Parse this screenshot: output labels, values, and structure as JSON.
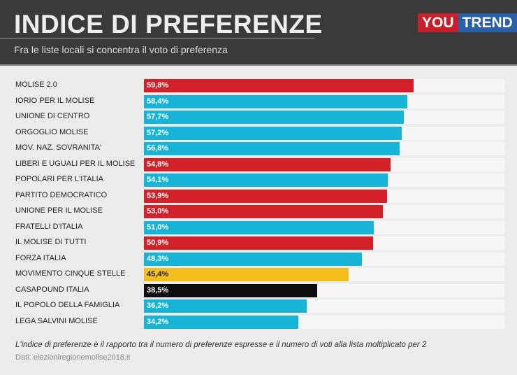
{
  "header": {
    "title": "INDICE DI PREFERENZE",
    "subtitle": "Fra le liste locali si concentra il voto di preferenza",
    "logo": "YouTrend"
  },
  "chart_data": {
    "type": "bar",
    "orientation": "horizontal",
    "title": "INDICE DI PREFERENZE",
    "xlim": [
      0,
      80
    ],
    "colors": {
      "red": "#d42129",
      "cyan": "#18b4d8",
      "yellow": "#f5be1c",
      "black": "#0d0d0d"
    },
    "categories": [
      "MOLISE 2.0",
      "IORIO PER IL MOLISE",
      "UNIONE DI CENTRO",
      "ORGOGLIO MOLISE",
      "MOV. NAZ. SOVRANITA'",
      "LIBERI E UGUALI PER IL MOLISE",
      "POPOLARI PER L'ITALIA",
      "PARTITO DEMOCRATICO",
      "UNIONE PER IL MOLISE",
      "FRATELLI D'ITALIA",
      "IL MOLISE DI TUTTI",
      "FORZA ITALIA",
      "MOVIMENTO CINQUE STELLE",
      "CASAPOUND ITALIA",
      "IL POPOLO DELLA FAMIGLIA",
      "LEGA SALVINI MOLISE"
    ],
    "values": [
      59.8,
      58.4,
      57.7,
      57.2,
      56.8,
      54.8,
      54.1,
      53.9,
      53.0,
      51.0,
      50.9,
      48.3,
      45.4,
      38.5,
      36.2,
      34.2
    ],
    "labels": [
      "59,8%",
      "58,4%",
      "57,7%",
      "57,2%",
      "56,8%",
      "54,8%",
      "54,1%",
      "53,9%",
      "53,0%",
      "51,0%",
      "50,9%",
      "48,3%",
      "45,4%",
      "38,5%",
      "36,2%",
      "34,2%"
    ],
    "bar_colors": [
      "red",
      "cyan",
      "cyan",
      "cyan",
      "cyan",
      "red",
      "cyan",
      "red",
      "red",
      "cyan",
      "red",
      "cyan",
      "yellow",
      "black",
      "cyan",
      "cyan"
    ]
  },
  "footer": {
    "note": "L'indice di preferenze è il rapporto tra il numero di preferenze espresse e il numero di voti alla lista moltiplicato per 2",
    "source": "Dati: elezioniregionemolise2018.it"
  }
}
